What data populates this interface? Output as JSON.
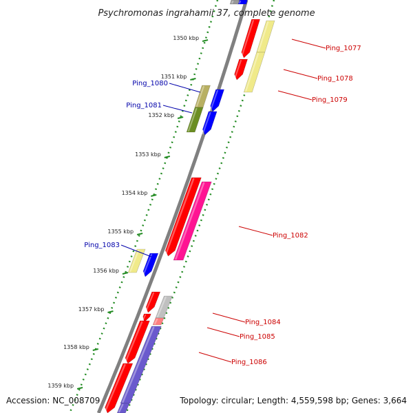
{
  "title": "Psychromonas ingrahamii 37, complete genome",
  "footer": {
    "accession": "Accession: NC_008709",
    "topology": "Topology: circular; Length: 4,559,598 bp; Genes: 3,664"
  },
  "colors": {
    "backbone": "#808080",
    "tick": "#228b22",
    "minus_label": "#0000aa",
    "plus_label": "#cc0000"
  },
  "scale_ticks": [
    {
      "kbp": 1350,
      "label": "1350 kbp"
    },
    {
      "kbp": 1351,
      "label": "1351 kbp"
    },
    {
      "kbp": 1352,
      "label": "1352 kbp"
    },
    {
      "kbp": 1353,
      "label": "1353 kbp"
    },
    {
      "kbp": 1354,
      "label": "1354 kbp"
    },
    {
      "kbp": 1355,
      "label": "1355 kbp"
    },
    {
      "kbp": 1356,
      "label": "1356 kbp"
    },
    {
      "kbp": 1357,
      "label": "1357 kbp"
    },
    {
      "kbp": 1358,
      "label": "1358 kbp"
    },
    {
      "kbp": 1359,
      "label": "1359 kbp"
    }
  ],
  "gene_labels": [
    {
      "name": "Ping_1077",
      "strand": "plus"
    },
    {
      "name": "Ping_1078",
      "strand": "plus"
    },
    {
      "name": "Ping_1079",
      "strand": "plus"
    },
    {
      "name": "Ping_1080",
      "strand": "minus"
    },
    {
      "name": "Ping_1081",
      "strand": "minus"
    },
    {
      "name": "Ping_1082",
      "strand": "plus"
    },
    {
      "name": "Ping_1083",
      "strand": "minus"
    },
    {
      "name": "Ping_1084",
      "strand": "plus"
    },
    {
      "name": "Ping_1085",
      "strand": "plus"
    },
    {
      "name": "Ping_1086",
      "strand": "plus"
    }
  ]
}
